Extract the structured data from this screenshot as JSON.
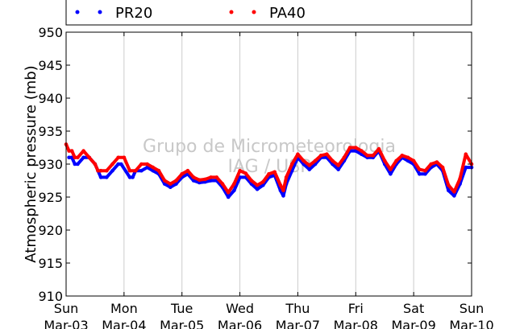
{
  "chart_data": {
    "type": "scatter",
    "ylabel": "Atmospheric pressure (mb)",
    "ylim": [
      910,
      950
    ],
    "yticks": [
      910,
      915,
      920,
      925,
      930,
      935,
      940,
      945,
      950
    ],
    "xlim": [
      0,
      7
    ],
    "xticks": [
      {
        "day": 0,
        "top": "Sun",
        "bottom": "Mar-03"
      },
      {
        "day": 1,
        "top": "Mon",
        "bottom": "Mar-04"
      },
      {
        "day": 2,
        "top": "Tue",
        "bottom": "Mar-05"
      },
      {
        "day": 3,
        "top": "Wed",
        "bottom": "Mar-06"
      },
      {
        "day": 4,
        "top": "Thu",
        "bottom": "Mar-07"
      },
      {
        "day": 5,
        "top": "Fri",
        "bottom": "Mar-08"
      },
      {
        "day": 6,
        "top": "Sat",
        "bottom": "Mar-09"
      },
      {
        "day": 7,
        "top": "Sun",
        "bottom": "Mar-10"
      }
    ],
    "grid_x": true,
    "legend_position": "top",
    "watermark": [
      "Grupo de Micrometeorologia",
      "IAG / USP"
    ],
    "series": [
      {
        "name": "PR20",
        "color": "#0000ff",
        "points": [
          [
            0.05,
            931
          ],
          [
            0.1,
            931
          ],
          [
            0.15,
            930
          ],
          [
            0.2,
            930
          ],
          [
            0.3,
            931
          ],
          [
            0.4,
            931
          ],
          [
            0.5,
            930
          ],
          [
            0.55,
            929
          ],
          [
            0.6,
            928
          ],
          [
            0.7,
            928
          ],
          [
            0.8,
            929
          ],
          [
            0.9,
            930
          ],
          [
            0.95,
            930
          ],
          [
            1.1,
            928
          ],
          [
            1.15,
            928
          ],
          [
            1.2,
            929
          ],
          [
            1.3,
            929
          ],
          [
            1.4,
            929.5
          ],
          [
            1.5,
            929
          ],
          [
            1.6,
            928.5
          ],
          [
            1.7,
            927
          ],
          [
            1.8,
            926.5
          ],
          [
            1.9,
            927
          ],
          [
            2.0,
            928
          ],
          [
            2.1,
            928.5
          ],
          [
            2.2,
            927.5
          ],
          [
            2.3,
            927.2
          ],
          [
            2.4,
            927.3
          ],
          [
            2.5,
            927.5
          ],
          [
            2.6,
            927.5
          ],
          [
            2.7,
            926.5
          ],
          [
            2.8,
            925
          ],
          [
            2.9,
            926
          ],
          [
            3.0,
            928
          ],
          [
            3.1,
            928
          ],
          [
            3.2,
            927
          ],
          [
            3.3,
            926.2
          ],
          [
            3.4,
            926.8
          ],
          [
            3.5,
            928
          ],
          [
            3.6,
            928.3
          ],
          [
            3.7,
            926
          ],
          [
            3.75,
            925.2
          ],
          [
            3.8,
            927
          ],
          [
            3.9,
            929
          ],
          [
            4.0,
            931
          ],
          [
            4.1,
            930
          ],
          [
            4.2,
            929.2
          ],
          [
            4.3,
            930
          ],
          [
            4.4,
            931
          ],
          [
            4.5,
            931
          ],
          [
            4.6,
            930
          ],
          [
            4.7,
            929.2
          ],
          [
            4.8,
            930.5
          ],
          [
            4.9,
            932
          ],
          [
            5.0,
            932
          ],
          [
            5.1,
            931.5
          ],
          [
            5.2,
            931
          ],
          [
            5.3,
            931
          ],
          [
            5.4,
            932
          ],
          [
            5.5,
            930
          ],
          [
            5.6,
            928.5
          ],
          [
            5.7,
            930
          ],
          [
            5.8,
            931
          ],
          [
            5.9,
            930.5
          ],
          [
            6.0,
            930
          ],
          [
            6.1,
            928.5
          ],
          [
            6.2,
            928.5
          ],
          [
            6.3,
            929.5
          ],
          [
            6.4,
            930
          ],
          [
            6.5,
            929
          ],
          [
            6.6,
            926
          ],
          [
            6.7,
            925.2
          ],
          [
            6.8,
            927
          ],
          [
            6.9,
            929.5
          ],
          [
            7.0,
            929.5
          ]
        ]
      },
      {
        "name": "PA40",
        "color": "#ff0000",
        "points": [
          [
            0.0,
            933
          ],
          [
            0.05,
            932
          ],
          [
            0.1,
            932
          ],
          [
            0.15,
            931
          ],
          [
            0.2,
            931
          ],
          [
            0.3,
            932
          ],
          [
            0.4,
            931
          ],
          [
            0.5,
            930
          ],
          [
            0.55,
            929
          ],
          [
            0.6,
            929
          ],
          [
            0.7,
            929
          ],
          [
            0.8,
            930
          ],
          [
            0.9,
            931
          ],
          [
            1.0,
            931
          ],
          [
            1.1,
            929
          ],
          [
            1.2,
            929
          ],
          [
            1.3,
            930
          ],
          [
            1.4,
            930
          ],
          [
            1.5,
            929.5
          ],
          [
            1.6,
            929
          ],
          [
            1.7,
            927.5
          ],
          [
            1.8,
            927
          ],
          [
            1.9,
            927.5
          ],
          [
            2.0,
            928.5
          ],
          [
            2.1,
            929
          ],
          [
            2.2,
            928
          ],
          [
            2.3,
            927.6
          ],
          [
            2.4,
            927.7
          ],
          [
            2.5,
            928
          ],
          [
            2.6,
            928
          ],
          [
            2.7,
            927
          ],
          [
            2.8,
            925.7
          ],
          [
            2.9,
            927
          ],
          [
            3.0,
            929
          ],
          [
            3.1,
            928.6
          ],
          [
            3.2,
            927.5
          ],
          [
            3.3,
            926.8
          ],
          [
            3.4,
            927.3
          ],
          [
            3.5,
            928.5
          ],
          [
            3.6,
            928.8
          ],
          [
            3.7,
            926.8
          ],
          [
            3.75,
            926
          ],
          [
            3.8,
            928
          ],
          [
            3.9,
            930
          ],
          [
            4.0,
            931.5
          ],
          [
            4.1,
            930.5
          ],
          [
            4.2,
            929.8
          ],
          [
            4.3,
            930.5
          ],
          [
            4.4,
            931.3
          ],
          [
            4.5,
            931.5
          ],
          [
            4.6,
            930.5
          ],
          [
            4.7,
            929.8
          ],
          [
            4.8,
            931
          ],
          [
            4.9,
            932.5
          ],
          [
            5.0,
            932.5
          ],
          [
            5.1,
            932
          ],
          [
            5.2,
            931.3
          ],
          [
            5.3,
            931.3
          ],
          [
            5.4,
            932.3
          ],
          [
            5.5,
            930.5
          ],
          [
            5.6,
            929.2
          ],
          [
            5.7,
            930.5
          ],
          [
            5.8,
            931.3
          ],
          [
            5.9,
            931
          ],
          [
            6.0,
            930.5
          ],
          [
            6.1,
            929.2
          ],
          [
            6.2,
            929
          ],
          [
            6.3,
            930
          ],
          [
            6.4,
            930.3
          ],
          [
            6.5,
            929.5
          ],
          [
            6.6,
            926.8
          ],
          [
            6.7,
            925.8
          ],
          [
            6.8,
            927.8
          ],
          [
            6.9,
            931.5
          ],
          [
            7.0,
            930
          ]
        ]
      }
    ]
  }
}
